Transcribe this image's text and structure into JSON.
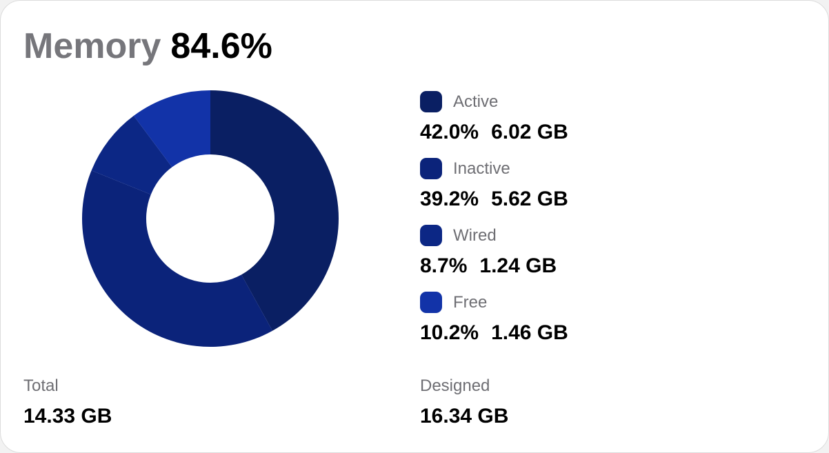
{
  "header": {
    "title": "Memory",
    "value": "84.6%"
  },
  "chart_data": {
    "type": "donut",
    "categories": [
      "Active",
      "Inactive",
      "Wired",
      "Free"
    ],
    "values": [
      42.0,
      39.2,
      8.7,
      10.2
    ],
    "value_labels": [
      "42.0%",
      "39.2%",
      "8.7%",
      "10.2%"
    ],
    "sizes": [
      "6.02 GB",
      "5.62 GB",
      "1.24 GB",
      "1.46 GB"
    ],
    "colors": [
      "#0a1f63",
      "#0b237a",
      "#0c2785",
      "#1233a8"
    ]
  },
  "footer": {
    "total_label": "Total",
    "total": "14.33 GB",
    "designed_label": "Designed",
    "designed": "16.34 GB"
  }
}
